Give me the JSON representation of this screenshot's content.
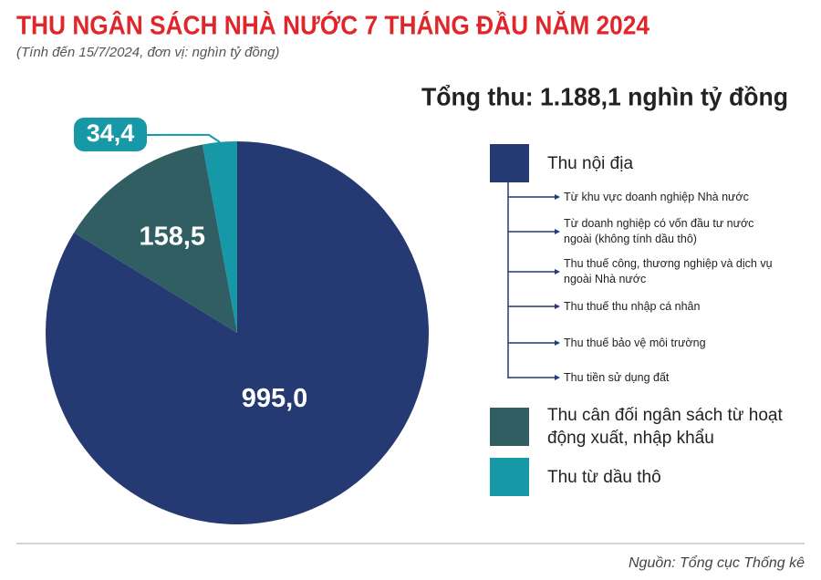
{
  "chart_data": {
    "type": "pie",
    "title": "THU NGÂN SÁCH NHÀ NƯỚC 7 THÁNG ĐẦU NĂM 2024",
    "subtitle": "(Tính đến 15/7/2024, đơn vị: nghìn tỷ đồng)",
    "total_label": "Tổng thu: 1.188,1 nghìn tỷ đồng",
    "categories": [
      "Thu nội địa",
      "Thu cân đối ngân sách từ hoạt động xuất, nhập khẩu",
      "Thu từ dầu thô"
    ],
    "values": [
      995.0,
      158.5,
      34.4
    ],
    "value_labels": [
      "995,0",
      "158,5",
      "34,4"
    ],
    "colors": [
      "#253a72",
      "#305e63",
      "#1698a6"
    ],
    "breakdown": [
      "Từ khu vực doanh nghiệp Nhà nước",
      "Từ doanh nghiệp có vốn đầu tư nước ngoài (không tính dầu thô)",
      "Thu thuế công, thương nghiệp và dịch vụ ngoài Nhà nước",
      "Thu thuế thu nhập cá nhân",
      "Thu thuế bảo vệ môi trường",
      "Thu tiền sử dụng đất"
    ],
    "source": "Nguồn: Tổng cục Thống kê"
  }
}
